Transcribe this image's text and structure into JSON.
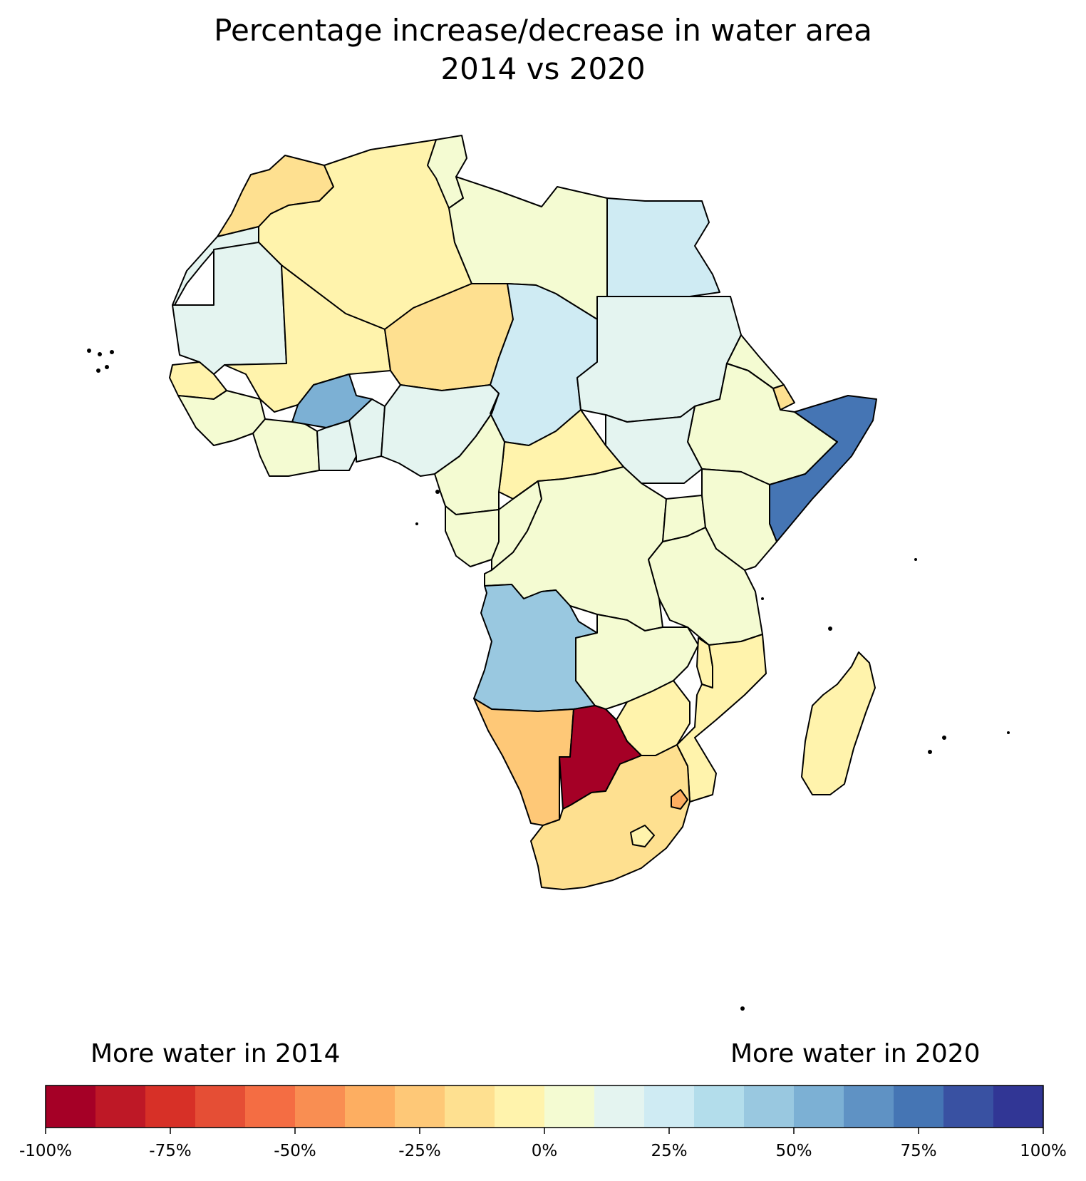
{
  "title": {
    "line1": "Percentage increase/decrease in water area",
    "line2": "2014 vs 2020"
  },
  "colorbar": {
    "left_caption": "More water in 2014",
    "right_caption": "More water in 2020",
    "min": -100,
    "max": 100,
    "step": 10,
    "colors": [
      "#a50026",
      "#be1826",
      "#d73027",
      "#e54e35",
      "#f46d43",
      "#f98e52",
      "#fdae61",
      "#fec877",
      "#fee090",
      "#fff3ac",
      "#f4fbd2",
      "#e4f4f0",
      "#cfebf3",
      "#b3ddeb",
      "#99c8e0",
      "#7cb0d4",
      "#5f92c4",
      "#4575b4",
      "#3951a2",
      "#313695"
    ],
    "ticks": [
      {
        "value": -100,
        "label": "-100%"
      },
      {
        "value": -75,
        "label": "-75%"
      },
      {
        "value": -50,
        "label": "-50%"
      },
      {
        "value": -25,
        "label": "-25%"
      },
      {
        "value": 0,
        "label": "0%"
      },
      {
        "value": 25,
        "label": "25%"
      },
      {
        "value": 50,
        "label": "50%"
      },
      {
        "value": 75,
        "label": "75%"
      },
      {
        "value": 100,
        "label": "100%"
      }
    ]
  },
  "map": {
    "colors": {
      "morocco": "#fee090",
      "algeria": "#fff3ac",
      "tunisia": "#f4fbd2",
      "libya": "#f4fbd2",
      "egypt": "#cfebf3",
      "mauritania": "#e4f4f0",
      "mali": "#fff3ac",
      "niger": "#fee090",
      "chad": "#cfebf3",
      "sudan": "#e4f4f0",
      "eritrea": "#f4fbd2",
      "djibouti": "#fee090",
      "ethiopia": "#f4fbd2",
      "somalia": "#4575b4",
      "south-sudan": "#e4f4f0",
      "car": "#fff3ac",
      "nigeria": "#e4f4f0",
      "burkina-faso": "#7cb0d4",
      "senegal": "#fff3ac",
      "guinea": "#f4fbd2",
      "cote-divoire": "#f4fbd2",
      "ghana": "#e4f4f0",
      "cameroon": "#f4fbd2",
      "gabon": "#f4fbd2",
      "congo": "#f4fbd2",
      "drc": "#f4fbd2",
      "uganda": "#f4fbd2",
      "kenya": "#f4fbd2",
      "tanzania": "#f4fbd2",
      "angola": "#99c8e0",
      "zambia": "#f4fbd2",
      "malawi": "#fff3ac",
      "mozambique": "#fff3ac",
      "zimbabwe": "#fff3ac",
      "namibia": "#fec877",
      "botswana": "#a50026",
      "south-africa": "#fee090",
      "eswatini": "#fdae61",
      "lesotho": "#fff3ac",
      "madagascar": "#fff3ac",
      "western-sahara": "#e4f4f0"
    }
  }
}
